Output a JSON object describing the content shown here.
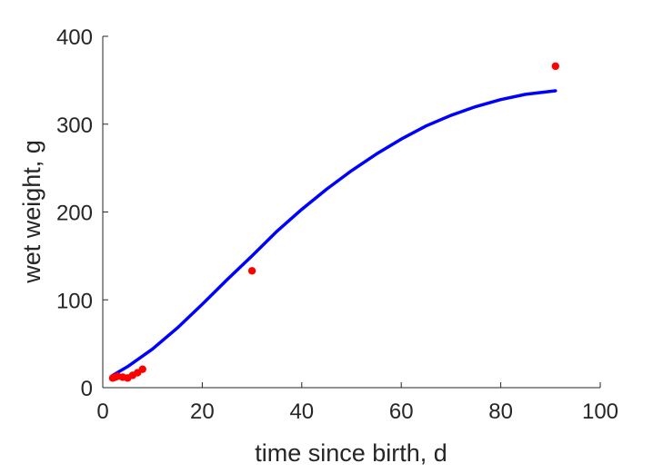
{
  "chart_data": {
    "type": "scatter",
    "xlabel": "time since birth, d",
    "ylabel": "wet weight, g",
    "xlim": [
      0,
      100
    ],
    "ylim": [
      0,
      400
    ],
    "xticks": [
      "0",
      "20",
      "40",
      "60",
      "80",
      "100"
    ],
    "yticks": [
      "0",
      "100",
      "200",
      "300",
      "400"
    ],
    "grid": false,
    "legend": "none",
    "series": [
      {
        "kind": "line",
        "color": "#0000ff",
        "x": [
          2,
          5,
          10,
          15,
          20,
          25,
          30,
          35,
          40,
          45,
          50,
          55,
          60,
          65,
          70,
          75,
          80,
          85,
          91
        ],
        "y": [
          14,
          24,
          44,
          68,
          95,
          123,
          150,
          178,
          203,
          226,
          247,
          266,
          283,
          298,
          310,
          320,
          328,
          334,
          338
        ]
      },
      {
        "kind": "scatter",
        "color": "#ff0000",
        "x": [
          2,
          2.5,
          3,
          4,
          5,
          6,
          7,
          8,
          30,
          91
        ],
        "y": [
          11,
          12,
          13,
          12,
          11,
          14,
          17,
          21,
          133,
          366
        ]
      }
    ]
  }
}
